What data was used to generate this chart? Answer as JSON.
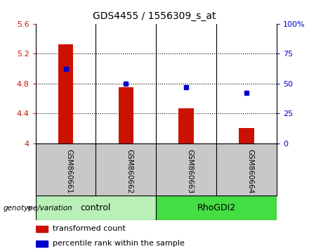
{
  "title": "GDS4455 / 1556309_s_at",
  "samples": [
    "GSM860661",
    "GSM860662",
    "GSM860663",
    "GSM860664"
  ],
  "bar_values": [
    5.32,
    4.75,
    4.47,
    4.2
  ],
  "dot_percentiles": [
    62,
    50,
    47,
    42
  ],
  "bar_bottom": 4.0,
  "ylim_left": [
    4.0,
    5.6
  ],
  "ylim_right": [
    0,
    100
  ],
  "yticks_left": [
    4.0,
    4.4,
    4.8,
    5.2,
    5.6
  ],
  "ytick_labels_left": [
    "4",
    "4.4",
    "4.8",
    "5.2",
    "5.6"
  ],
  "yticks_right": [
    0,
    25,
    50,
    75,
    100
  ],
  "ytick_labels_right": [
    "0",
    "25",
    "50",
    "75",
    "100%"
  ],
  "hgrid_at": [
    4.4,
    4.8,
    5.2
  ],
  "groups": [
    {
      "name": "control",
      "samples": [
        0,
        1
      ],
      "color": "#b8f0b8"
    },
    {
      "name": "RhoGDI2",
      "samples": [
        2,
        3
      ],
      "color": "#44dd44"
    }
  ],
  "bar_color": "#cc1100",
  "dot_color": "#0000cc",
  "bar_width": 0.25,
  "label_red": "transformed count",
  "label_blue": "percentile rank within the sample",
  "xlabel_area_color": "#c8c8c8",
  "title_fontsize": 10,
  "axis_fontsize": 8,
  "label_fontsize": 8,
  "sample_fontsize": 7.5,
  "group_fontsize": 9
}
